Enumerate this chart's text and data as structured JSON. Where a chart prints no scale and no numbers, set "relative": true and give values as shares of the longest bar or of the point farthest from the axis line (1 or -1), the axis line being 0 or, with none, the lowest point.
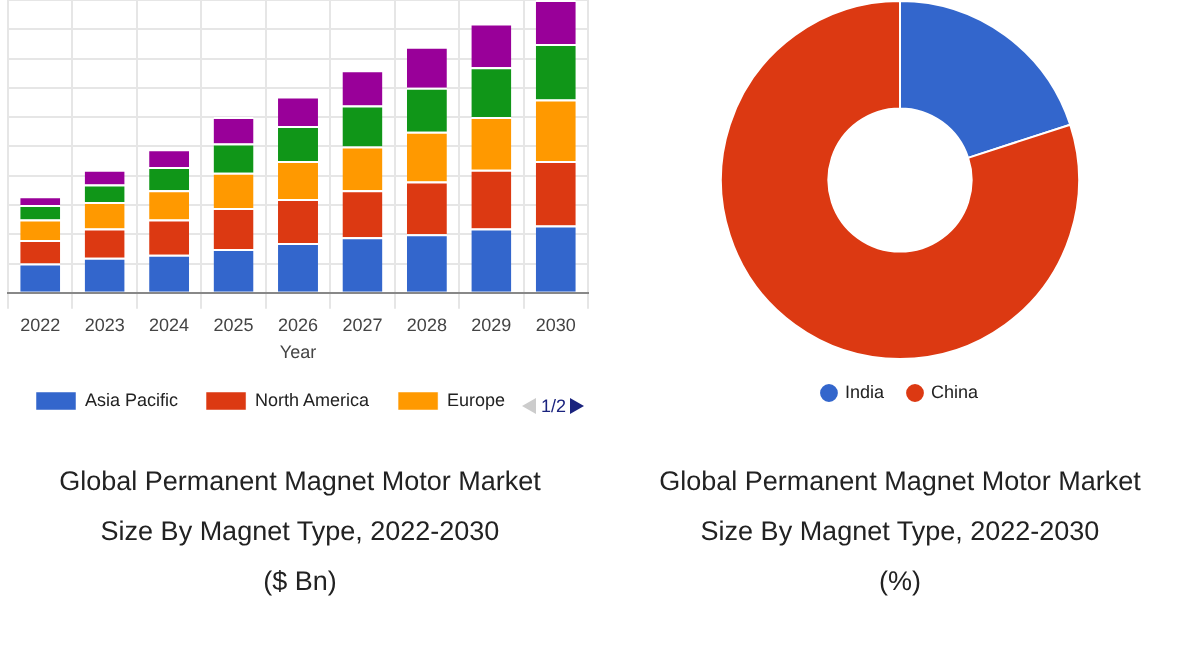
{
  "chart_data": [
    {
      "type": "bar",
      "stacked": true,
      "relative": true,
      "grid": true,
      "legend": "bottom",
      "xlabel": "Year",
      "title": "Global Permanent Magnet Motor Market Size By Magnet Type, 2022-2030",
      "subtitle": "($ Bn)",
      "annotations": [
        "1/2"
      ],
      "categories": [
        "2022",
        "2023",
        "2024",
        "2025",
        "2026",
        "2027",
        "2028",
        "2029",
        "2030"
      ],
      "series": [
        {
          "name": "Asia Pacific",
          "color": "#3366cc",
          "values": [
            0.1,
            0.12,
            0.13,
            0.15,
            0.17,
            0.19,
            0.2,
            0.22,
            0.23
          ]
        },
        {
          "name": "North America",
          "color": "#dc3912",
          "values": [
            0.08,
            0.1,
            0.12,
            0.14,
            0.15,
            0.16,
            0.18,
            0.2,
            0.22
          ]
        },
        {
          "name": "Europe",
          "color": "#ff9900",
          "values": [
            0.07,
            0.09,
            0.1,
            0.12,
            0.13,
            0.15,
            0.17,
            0.18,
            0.21
          ]
        },
        {
          "color": "#109618",
          "values": [
            0.05,
            0.06,
            0.08,
            0.1,
            0.12,
            0.14,
            0.15,
            0.17,
            0.19
          ]
        },
        {
          "color": "#990099",
          "values": [
            0.03,
            0.05,
            0.06,
            0.09,
            0.1,
            0.12,
            0.14,
            0.15,
            0.15
          ]
        }
      ]
    },
    {
      "type": "donut",
      "legend": "bottom",
      "title": "Global Permanent Magnet Motor Market Size By Magnet Type, 2022-2030",
      "subtitle": "(%)",
      "categories": [
        "India",
        "China"
      ],
      "values": [
        20,
        80
      ],
      "colors": [
        "#3366cc",
        "#dc3912"
      ]
    }
  ]
}
